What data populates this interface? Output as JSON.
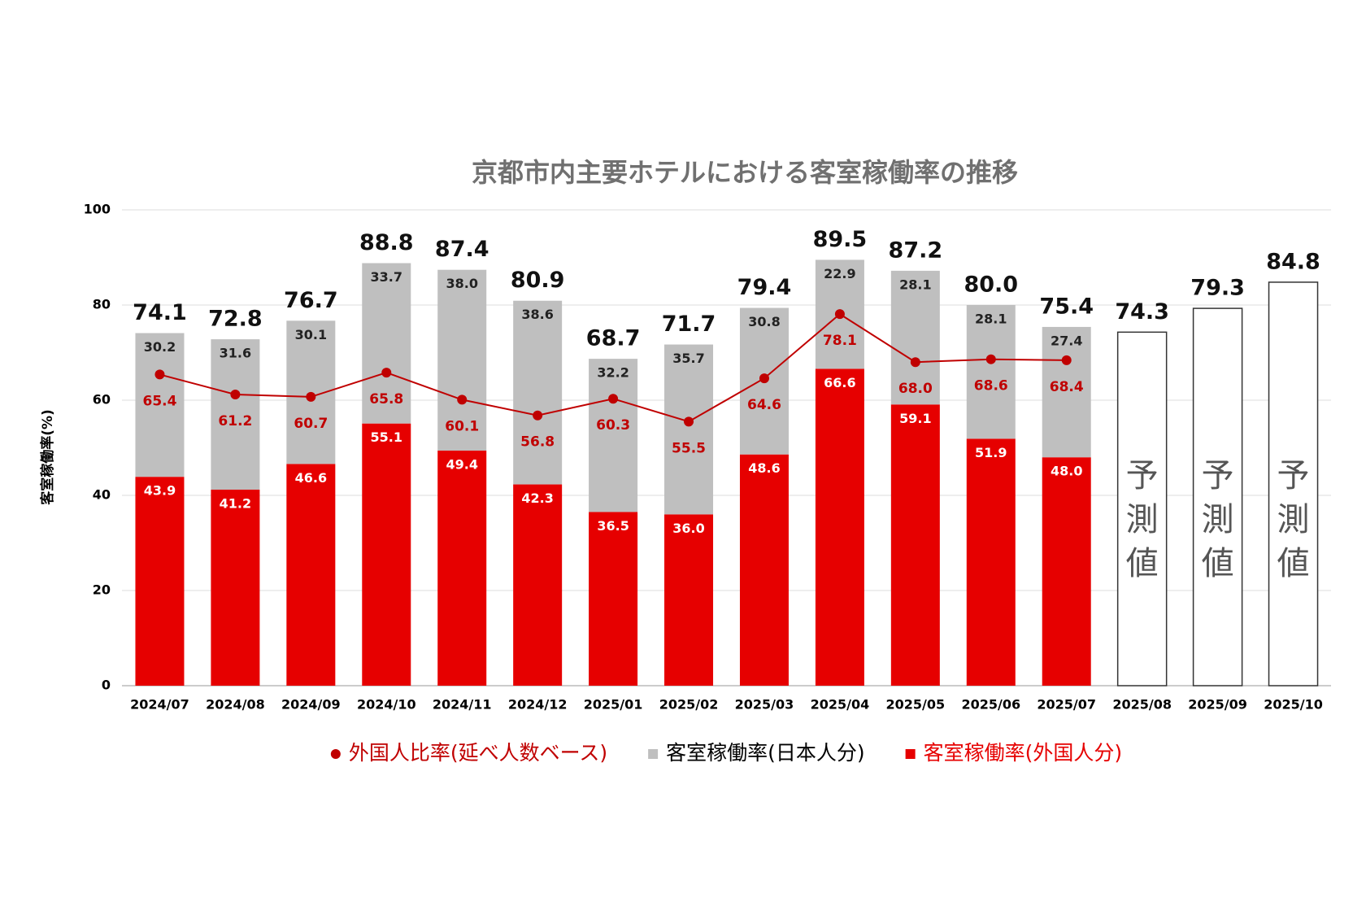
{
  "chart_data": {
    "type": "stacked-bar-line",
    "title": "京都市内主要ホテルにおける客室稼働率の推移",
    "y_label": "客室稼働率(%)",
    "categories": [
      "2024/07",
      "2024/08",
      "2024/09",
      "2024/10",
      "2024/11",
      "2024/12",
      "2025/01",
      "2025/02",
      "2025/03",
      "2025/04",
      "2025/05",
      "2025/06",
      "2025/07",
      "2025/08",
      "2025/09",
      "2025/10"
    ],
    "series": [
      {
        "name": "外国人比率(延べ人数ベース)",
        "type": "line",
        "color": "#c00000",
        "legend_text_color": "#c00000",
        "values": [
          65.4,
          61.2,
          60.7,
          65.8,
          60.1,
          56.8,
          60.3,
          55.5,
          64.6,
          78.1,
          68.0,
          68.6,
          68.4,
          null,
          null,
          null
        ],
        "value_labels": [
          "65.4",
          "61.2",
          "60.7",
          "65.8",
          "60.1",
          "56.8",
          "60.3",
          "55.5",
          "64.6",
          "78.1",
          "68.0",
          "68.6",
          "68.4",
          null,
          null,
          null
        ]
      },
      {
        "name": "客室稼働率(日本人分)",
        "type": "bar",
        "color": "#bfbfbf",
        "legend_text_color": "#000000",
        "values": [
          30.2,
          31.6,
          30.1,
          33.7,
          38.0,
          38.6,
          32.2,
          35.7,
          30.8,
          22.9,
          28.1,
          28.1,
          27.4,
          null,
          null,
          null
        ],
        "value_labels": [
          "30.2",
          "31.6",
          "30.1",
          "33.7",
          "38.0",
          "38.6",
          "32.2",
          "35.7",
          "30.8",
          "22.9",
          "28.1",
          "28.1",
          "27.4",
          null,
          null,
          null
        ]
      },
      {
        "name": "客室稼働率(外国人分)",
        "type": "bar",
        "color": "#e60000",
        "legend_text_color": "#e60000",
        "values": [
          43.9,
          41.2,
          46.6,
          55.1,
          49.4,
          42.3,
          36.5,
          36.0,
          48.6,
          66.6,
          59.1,
          51.9,
          48.0,
          null,
          null,
          null
        ],
        "value_labels": [
          "43.9",
          "41.2",
          "46.6",
          "55.1",
          "49.4",
          "42.3",
          "36.5",
          "36.0",
          "48.6",
          "66.6",
          "59.1",
          "51.9",
          "48.0",
          null,
          null,
          null
        ]
      }
    ],
    "totals": {
      "values": [
        74.1,
        72.8,
        76.7,
        88.8,
        87.4,
        80.9,
        68.7,
        71.7,
        79.4,
        89.5,
        87.2,
        80.0,
        75.4,
        74.3,
        79.3,
        84.8
      ],
      "value_labels": [
        "74.1",
        "72.8",
        "76.7",
        "88.8",
        "87.4",
        "80.9",
        "68.7",
        "71.7",
        "79.4",
        "89.5",
        "87.2",
        "80.0",
        "75.4",
        "74.3",
        "79.3",
        "84.8"
      ]
    },
    "forecast_label": "予測値",
    "ylim": [
      0,
      100
    ],
    "yticks": [
      0,
      20,
      40,
      60,
      80,
      100
    ],
    "grid": true,
    "legend": "bottom"
  }
}
